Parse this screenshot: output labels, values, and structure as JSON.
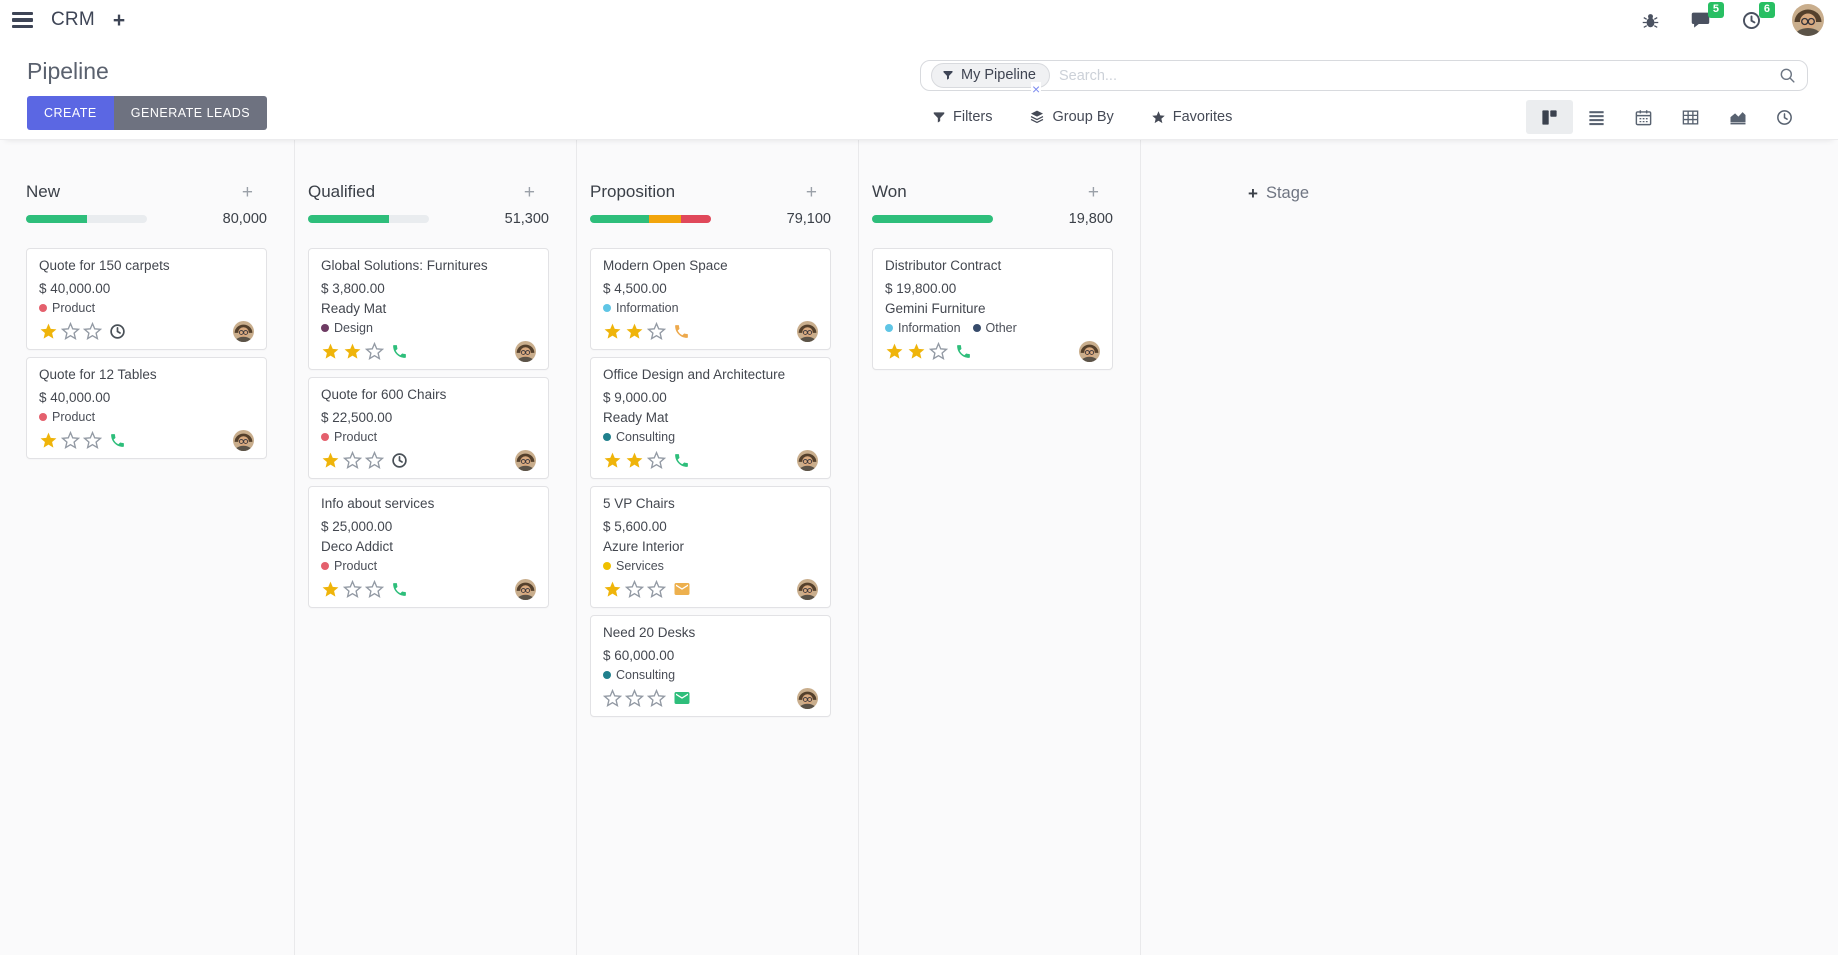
{
  "navbar": {
    "app_name": "CRM",
    "add_label": "+",
    "messages_badge": "5",
    "activities_badge": "6"
  },
  "control_panel": {
    "title": "Pipeline",
    "create_label": "CREATE",
    "generate_leads_label": "GENERATE LEADS",
    "search": {
      "facet_label": "My Pipeline",
      "placeholder": "Search...",
      "remove_symbol": "×"
    },
    "menus": {
      "filters": "Filters",
      "group_by": "Group By",
      "favorites": "Favorites"
    }
  },
  "board": {
    "add_stage_plus": "+",
    "add_stage_label": "Stage",
    "columns": [
      {
        "name": "New",
        "total": "80,000",
        "progress": [
          {
            "color": "#2ebe7b",
            "pct": 50
          }
        ],
        "cards": [
          {
            "title": "Quote for 150 carpets",
            "amount": "$ 40,000.00",
            "tags": [
              {
                "label": "Product",
                "color": "#e4606d"
              }
            ],
            "stars": 1,
            "activity": {
              "icon": "clock",
              "color": "#495057"
            }
          },
          {
            "title": "Quote for 12 Tables",
            "amount": "$ 40,000.00",
            "tags": [
              {
                "label": "Product",
                "color": "#e4606d"
              }
            ],
            "stars": 1,
            "activity": {
              "icon": "phone",
              "color": "#2ebe7b"
            }
          }
        ]
      },
      {
        "name": "Qualified",
        "total": "51,300",
        "progress": [
          {
            "color": "#2ebe7b",
            "pct": 67
          }
        ],
        "cards": [
          {
            "title": "Global Solutions: Furnitures",
            "amount": "$ 3,800.00",
            "company": "Ready Mat",
            "tags": [
              {
                "label": "Design",
                "color": "#6e3b63"
              }
            ],
            "stars": 2,
            "activity": {
              "icon": "phone",
              "color": "#2ebe7b"
            }
          },
          {
            "title": "Quote for 600 Chairs",
            "amount": "$ 22,500.00",
            "tags": [
              {
                "label": "Product",
                "color": "#e4606d"
              }
            ],
            "stars": 1,
            "activity": {
              "icon": "clock",
              "color": "#495057"
            }
          },
          {
            "title": "Info about services",
            "amount": "$ 25,000.00",
            "company": "Deco Addict",
            "tags": [
              {
                "label": "Product",
                "color": "#e4606d"
              }
            ],
            "stars": 1,
            "activity": {
              "icon": "phone",
              "color": "#2ebe7b"
            }
          }
        ]
      },
      {
        "name": "Proposition",
        "total": "79,100",
        "progress": [
          {
            "color": "#2ebe7b",
            "pct": 49
          },
          {
            "color": "#f2a50c",
            "pct": 26
          },
          {
            "color": "#e0485a",
            "pct": 25
          }
        ],
        "cards": [
          {
            "title": "Modern Open Space",
            "amount": "$ 4,500.00",
            "tags": [
              {
                "label": "Information",
                "color": "#5fc5e5"
              }
            ],
            "stars": 2,
            "activity": {
              "icon": "phone",
              "color": "#eda94d"
            }
          },
          {
            "title": "Office Design and Architecture",
            "amount": "$ 9,000.00",
            "company": "Ready Mat",
            "tags": [
              {
                "label": "Consulting",
                "color": "#20808d"
              }
            ],
            "stars": 2,
            "activity": {
              "icon": "phone",
              "color": "#2ebe7b"
            }
          },
          {
            "title": "5 VP Chairs",
            "amount": "$ 5,600.00",
            "company": "Azure Interior",
            "tags": [
              {
                "label": "Services",
                "color": "#efc000"
              }
            ],
            "stars": 1,
            "activity": {
              "icon": "envelope",
              "color": "#edb04e"
            }
          },
          {
            "title": "Need 20 Desks",
            "amount": "$ 60,000.00",
            "tags": [
              {
                "label": "Consulting",
                "color": "#20808d"
              }
            ],
            "stars": 0,
            "activity": {
              "icon": "envelope",
              "color": "#2ebe7b"
            }
          }
        ]
      },
      {
        "name": "Won",
        "total": "19,800",
        "progress": [
          {
            "color": "#2ebe7b",
            "pct": 100
          }
        ],
        "cards": [
          {
            "title": "Distributor Contract",
            "amount": "$ 19,800.00",
            "company": "Gemini Furniture",
            "tags": [
              {
                "label": "Information",
                "color": "#5fc5e5"
              },
              {
                "label": "Other",
                "color": "#374b6b"
              }
            ],
            "stars": 2,
            "activity": {
              "icon": "phone",
              "color": "#2ebe7b"
            }
          }
        ]
      }
    ]
  },
  "colors": {
    "primary": "#5b67e3",
    "secondary": "#6e7280",
    "success": "#2ebe7b",
    "warning": "#f2a50c",
    "danger": "#e0485a",
    "star_filled": "#efb40a",
    "badge_green": "#28bf63",
    "progress_track": "#e9ecef"
  }
}
